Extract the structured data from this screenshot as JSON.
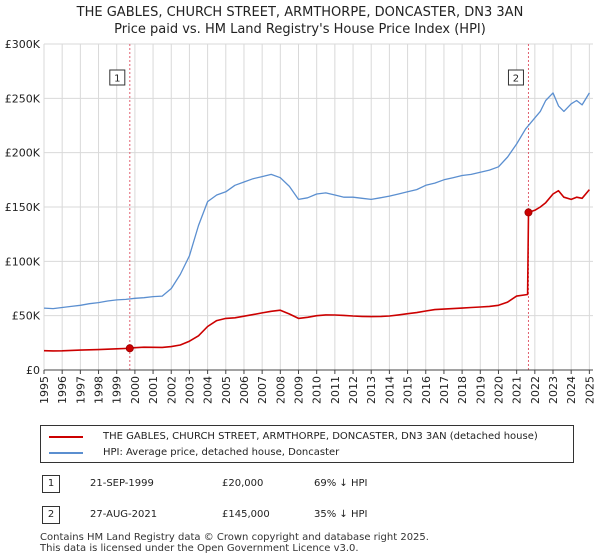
{
  "chart_data": {
    "type": "line",
    "title": "THE GABLES, CHURCH STREET, ARMTHORPE, DONCASTER, DN3 3AN",
    "subtitle": "Price paid vs. HM Land Registry's House Price Index (HPI)",
    "xlabel": "",
    "ylabel": "",
    "xlim": [
      1995,
      2025.2
    ],
    "ylim": [
      0,
      300000
    ],
    "y_ticks": [
      {
        "value": 0,
        "label": "£0"
      },
      {
        "value": 50000,
        "label": "£50K"
      },
      {
        "value": 100000,
        "label": "£100K"
      },
      {
        "value": 150000,
        "label": "£150K"
      },
      {
        "value": 200000,
        "label": "£200K"
      },
      {
        "value": 250000,
        "label": "£250K"
      },
      {
        "value": 300000,
        "label": "£300K"
      }
    ],
    "x_ticks": [
      "1995",
      "1996",
      "1997",
      "1998",
      "1999",
      "2000",
      "2001",
      "2002",
      "2003",
      "2004",
      "2005",
      "2006",
      "2007",
      "2008",
      "2009",
      "2010",
      "2011",
      "2012",
      "2013",
      "2014",
      "2015",
      "2016",
      "2017",
      "2018",
      "2019",
      "2020",
      "2021",
      "2022",
      "2023",
      "2024",
      "2025"
    ],
    "grid": true,
    "series": [
      {
        "name": "THE GABLES, CHURCH STREET, ARMTHORPE, DONCASTER, DN3 3AN (detached house)",
        "color": "#cc0000",
        "x": [
          1995.0,
          1995.5,
          1996.0,
          1996.5,
          1997.0,
          1997.5,
          1998.0,
          1998.5,
          1999.0,
          1999.72,
          2000.0,
          2000.5,
          2001.0,
          2001.5,
          2002.0,
          2002.5,
          2003.0,
          2003.5,
          2004.0,
          2004.5,
          2005.0,
          2005.5,
          2006.0,
          2006.5,
          2007.0,
          2007.5,
          2008.0,
          2008.5,
          2009.0,
          2009.5,
          2010.0,
          2010.5,
          2011.0,
          2011.5,
          2012.0,
          2012.5,
          2013.0,
          2013.5,
          2014.0,
          2014.5,
          2015.0,
          2015.5,
          2016.0,
          2016.5,
          2017.0,
          2017.5,
          2018.0,
          2018.5,
          2019.0,
          2019.5,
          2020.0,
          2020.5,
          2021.0,
          2021.6,
          2021.65,
          2022.0,
          2022.3,
          2022.6,
          2023.0,
          2023.3,
          2023.6,
          2024.0,
          2024.3,
          2024.6,
          2025.0
        ],
        "values": [
          17800,
          17600,
          17700,
          18000,
          18300,
          18600,
          18800,
          19100,
          19500,
          20000,
          20500,
          21000,
          20900,
          20800,
          21500,
          23000,
          26500,
          31500,
          40000,
          45500,
          47500,
          48000,
          49500,
          51000,
          52500,
          54000,
          55000,
          51500,
          47500,
          48500,
          50000,
          50700,
          50600,
          50200,
          49700,
          49300,
          49100,
          49200,
          49700,
          50700,
          51800,
          52800,
          54300,
          55600,
          56000,
          56500,
          57000,
          57500,
          58000,
          58500,
          59500,
          62500,
          68000,
          69500,
          145000,
          147000,
          150000,
          154000,
          162000,
          165000,
          159000,
          157000,
          159000,
          158000,
          166000
        ]
      },
      {
        "name": "HPI: Average price, detached house, Doncaster",
        "color": "#5b8fd0",
        "x": [
          1995.0,
          1995.5,
          1996.0,
          1996.5,
          1997.0,
          1997.5,
          1998.0,
          1998.5,
          1999.0,
          1999.5,
          2000.0,
          2000.5,
          2001.0,
          2001.5,
          2002.0,
          2002.5,
          2003.0,
          2003.5,
          2004.0,
          2004.5,
          2005.0,
          2005.5,
          2006.0,
          2006.5,
          2007.0,
          2007.5,
          2008.0,
          2008.5,
          2009.0,
          2009.5,
          2010.0,
          2010.5,
          2011.0,
          2011.5,
          2012.0,
          2012.5,
          2013.0,
          2013.5,
          2014.0,
          2014.5,
          2015.0,
          2015.5,
          2016.0,
          2016.5,
          2017.0,
          2017.5,
          2018.0,
          2018.5,
          2019.0,
          2019.5,
          2020.0,
          2020.5,
          2021.0,
          2021.5,
          2022.0,
          2022.3,
          2022.6,
          2023.0,
          2023.3,
          2023.6,
          2024.0,
          2024.3,
          2024.6,
          2025.0
        ],
        "values": [
          57000,
          56500,
          57500,
          58500,
          59500,
          61000,
          62000,
          63500,
          64500,
          65000,
          66000,
          66500,
          67500,
          68000,
          75000,
          88000,
          105000,
          133000,
          155000,
          161000,
          164000,
          170000,
          173000,
          176000,
          178000,
          180000,
          177000,
          169000,
          157000,
          158500,
          162000,
          163000,
          161000,
          159000,
          159000,
          158000,
          157000,
          158500,
          160000,
          162000,
          164000,
          166000,
          170000,
          172000,
          175000,
          177000,
          179000,
          180000,
          182000,
          184000,
          187000,
          196000,
          208000,
          222000,
          232000,
          238000,
          248000,
          255000,
          243000,
          238000,
          245000,
          248000,
          244000,
          255000
        ]
      }
    ],
    "annotations": [
      {
        "label": "1",
        "x": 1999.72,
        "y": 20000
      },
      {
        "label": "2",
        "x": 2021.65,
        "y": 145000
      }
    ]
  },
  "legend": {
    "entries": [
      {
        "label": "THE GABLES, CHURCH STREET, ARMTHORPE, DONCASTER, DN3 3AN (detached house)",
        "color": "#cc0000"
      },
      {
        "label": "HPI: Average price, detached house, Doncaster",
        "color": "#5b8fd0"
      }
    ]
  },
  "transactions": [
    {
      "badge": "1",
      "date": "21-SEP-1999",
      "price": "£20,000",
      "hpi": "69% ↓ HPI"
    },
    {
      "badge": "2",
      "date": "27-AUG-2021",
      "price": "£145,000",
      "hpi": "35% ↓ HPI"
    }
  ],
  "footer": {
    "line1": "Contains HM Land Registry data © Crown copyright and database right 2025.",
    "line2": "This data is licensed under the Open Government Licence v3.0."
  }
}
